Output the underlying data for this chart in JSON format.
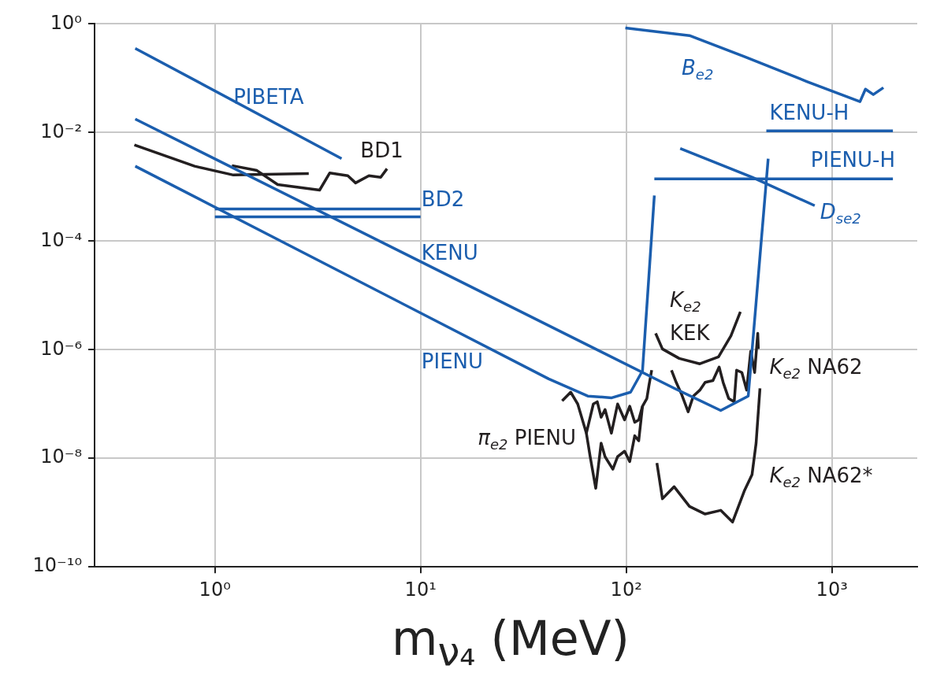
{
  "chart_data": {
    "type": "line",
    "xlabel": "m$_{ν₄}$ (MeV)",
    "log": "xy",
    "xlim": [
      0.26,
      2600
    ],
    "ylim": [
      1e-10,
      1
    ],
    "xticks": [
      {
        "value": 1,
        "label": "10⁰"
      },
      {
        "value": 10,
        "label": "10¹"
      },
      {
        "value": 100,
        "label": "10²"
      },
      {
        "value": 1000,
        "label": "10³"
      }
    ],
    "yticks": [
      {
        "value": 1e-10,
        "label": "10⁻¹⁰"
      },
      {
        "value": 1e-08,
        "label": "10⁻⁸"
      },
      {
        "value": 1e-06,
        "label": "10⁻⁶"
      },
      {
        "value": 0.0001,
        "label": "10⁻⁴"
      },
      {
        "value": 0.01,
        "label": "10⁻²"
      },
      {
        "value": 1,
        "label": "10⁰"
      }
    ],
    "grid": true,
    "legend": false,
    "marker": "none",
    "series": [
      {
        "name": "PIBETA",
        "color": "#1b5eae",
        "x": [
          0.41,
          4.13
        ],
        "values": [
          0.355,
          0.0033
        ]
      },
      {
        "name": "KENU",
        "color": "#1b5eae",
        "x": [
          0.41,
          171,
          288,
          392,
          490
        ],
        "values": [
          0.0177,
          1.95e-07,
          7.6e-08,
          1.4e-07,
          0.0033
        ]
      },
      {
        "name": "PIENU",
        "color": "#1b5eae",
        "x": [
          0.41,
          42,
          65,
          85,
          105,
          120,
          137
        ],
        "values": [
          0.0024,
          2.9e-07,
          1.4e-07,
          1.3e-07,
          1.65e-07,
          4.1e-07,
          0.00069
        ]
      },
      {
        "name": "BD2",
        "color": "#1b5eae",
        "x": [
          1,
          10
        ],
        "values": [
          0.00039,
          0.00039
        ]
      },
      {
        "color": "#1b5eae",
        "x": [
          1,
          10
        ],
        "values": [
          0.00028,
          0.00028
        ]
      },
      {
        "name": "PIENU-H",
        "color": "#1b5eae",
        "x": [
          137,
          1980
        ],
        "values": [
          0.0014,
          0.0014
        ]
      },
      {
        "name": "KENU-H",
        "color": "#1b5eae",
        "x": [
          480,
          1980
        ],
        "values": [
          0.0107,
          0.0107
        ]
      },
      {
        "name": "B$_{e2}$",
        "color": "#1b5eae",
        "x": [
          99,
          203,
          375,
          755,
          1370,
          1456,
          1590,
          1780
        ],
        "values": [
          0.846,
          0.61,
          0.25,
          0.087,
          0.037,
          0.063,
          0.05,
          0.067
        ]
      },
      {
        "name": "D$_{se2}$",
        "color": "#1b5eae",
        "x": [
          183,
          409,
          825
        ],
        "values": [
          0.0051,
          0.0015,
          0.00045
        ]
      },
      {
        "color": "#231f20",
        "x": [
          0.406,
          0.797,
          1.23,
          1.75,
          2.86
        ],
        "values": [
          0.0059,
          0.0024,
          0.00165,
          0.0017,
          0.00176
        ]
      },
      {
        "name": "BD1",
        "color": "#231f20",
        "x": [
          1.21,
          1.6,
          2.02,
          3.23,
          3.62,
          4.43,
          4.83,
          5.61,
          6.4,
          6.87
        ],
        "values": [
          0.00246,
          0.002,
          0.0011,
          0.00087,
          0.0018,
          0.0016,
          0.00118,
          0.0016,
          0.0015,
          0.00215
        ]
      },
      {
        "name": "π$_{e2}$ PIENU",
        "color": "#231f20",
        "x": [
          48.8,
          53.7,
          58.1,
          64,
          69.2,
          72.3,
          75.5,
          78.9,
          84.7,
          90.8,
          98.2,
          104,
          110,
          115,
          120,
          126,
          129,
          133
        ],
        "values": [
          1.14e-07,
          1.65e-07,
          1e-07,
          2.9e-08,
          1e-07,
          1.1e-07,
          5.7e-08,
          7.9e-08,
          2.9e-08,
          1e-07,
          5.1e-08,
          9.1e-08,
          4.6e-08,
          5.1e-08,
          9.1e-08,
          1.26e-07,
          2.2e-07,
          4.2e-07
        ]
      },
      {
        "color": "#231f20",
        "x": [
          64,
          66.8,
          71.1,
          75.5,
          78.9,
          86.1,
          90.8,
          98.2,
          104,
          110,
          115,
          120
        ],
        "values": [
          2.9e-08,
          1.07e-08,
          2.8e-09,
          1.9e-08,
          1.07e-08,
          6.3e-09,
          1.07e-08,
          1.35e-08,
          8.7e-09,
          2.6e-08,
          2.1e-08,
          9.1e-08
        ]
      },
      {
        "name": "K$_{e2}$ KEK",
        "color": "#231f20",
        "x": [
          139,
          150,
          181,
          228,
          281,
          323,
          359
        ],
        "values": [
          2e-06,
          1.03e-06,
          6.9e-07,
          5.5e-07,
          7.4e-07,
          1.8e-06,
          5e-06
        ]
      },
      {
        "name": "K$_{e2}$ NA62",
        "color": "#231f20",
        "x": [
          166,
          175,
          186,
          200,
          212,
          228,
          242,
          264,
          283,
          296,
          315,
          335,
          344,
          365,
          385,
          403,
          421,
          436,
          439
        ],
        "values": [
          4.2e-07,
          2.5e-07,
          1.5e-07,
          7.2e-08,
          1.4e-07,
          1.8e-07,
          2.5e-07,
          2.7e-07,
          4.8e-07,
          2.5e-07,
          1.26e-07,
          1.1e-07,
          4.2e-07,
          3.8e-07,
          1.8e-07,
          9.4e-07,
          3.8e-07,
          2e-06,
          1.03e-06
        ]
      },
      {
        "name": "K$_{e2}$ NA62*",
        "color": "#231f20",
        "x": [
          141,
          150,
          171,
          203,
          242,
          288,
          329,
          375,
          409,
          428,
          447
        ],
        "values": [
          8.2e-09,
          1.8e-09,
          3e-09,
          1.3e-09,
          9.4e-10,
          1.1e-09,
          6.7e-10,
          2.5e-09,
          5e-09,
          1.9e-08,
          1.95e-07
        ]
      }
    ]
  }
}
